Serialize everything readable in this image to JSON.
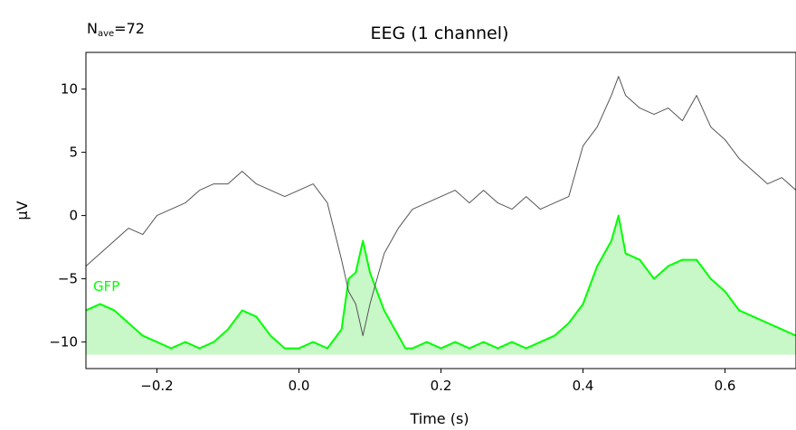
{
  "chart_data": {
    "type": "line",
    "title": "EEG (1 channel)",
    "annotation": {
      "main": "N",
      "sub": "ave",
      "suffix": "=72"
    },
    "xlabel": "Time (s)",
    "ylabel": "µV",
    "xlim": [
      -0.3,
      0.7
    ],
    "ylim": [
      -12.1,
      12.9
    ],
    "xticks": [
      {
        "value": -0.2,
        "label": "−0.2"
      },
      {
        "value": 0.0,
        "label": "0.0"
      },
      {
        "value": 0.2,
        "label": "0.2"
      },
      {
        "value": 0.4,
        "label": "0.4"
      },
      {
        "value": 0.6,
        "label": "0.6"
      }
    ],
    "yticks": [
      {
        "value": 10,
        "label": "10"
      },
      {
        "value": 5,
        "label": "5"
      },
      {
        "value": 0,
        "label": "0"
      },
      {
        "value": -5,
        "label": "−5"
      },
      {
        "value": -10,
        "label": "−10"
      }
    ],
    "grid": false,
    "series": [
      {
        "name": "",
        "color": "#555555",
        "x": [
          -0.3,
          -0.28,
          -0.26,
          -0.24,
          -0.22,
          -0.2,
          -0.18,
          -0.16,
          -0.14,
          -0.12,
          -0.1,
          -0.08,
          -0.06,
          -0.04,
          -0.02,
          0.0,
          0.02,
          0.04,
          0.06,
          0.07,
          0.08,
          0.09,
          0.1,
          0.11,
          0.12,
          0.14,
          0.16,
          0.18,
          0.2,
          0.22,
          0.24,
          0.26,
          0.28,
          0.3,
          0.32,
          0.34,
          0.36,
          0.38,
          0.4,
          0.42,
          0.44,
          0.45,
          0.46,
          0.48,
          0.5,
          0.52,
          0.54,
          0.56,
          0.58,
          0.6,
          0.62,
          0.64,
          0.66,
          0.68,
          0.7
        ],
        "y": [
          -4.0,
          -3.0,
          -2.0,
          -1.0,
          -1.5,
          0.0,
          0.5,
          1.0,
          2.0,
          2.5,
          2.5,
          3.5,
          2.5,
          2.0,
          1.5,
          2.0,
          2.5,
          1.0,
          -3.5,
          -6.0,
          -7.0,
          -9.5,
          -7.0,
          -5.0,
          -3.0,
          -1.0,
          0.5,
          1.0,
          1.5,
          2.0,
          1.0,
          2.0,
          1.0,
          0.5,
          1.5,
          0.5,
          1.0,
          1.5,
          5.5,
          7.0,
          9.5,
          11.0,
          9.5,
          8.5,
          8.0,
          8.5,
          7.5,
          9.5,
          7.0,
          6.0,
          4.5,
          3.5,
          2.5,
          3.0,
          2.0
        ]
      },
      {
        "name": "GFP",
        "color": "#00ff00",
        "fill": "#c8f7c8",
        "baseline": -11.0,
        "x": [
          -0.3,
          -0.28,
          -0.26,
          -0.24,
          -0.22,
          -0.2,
          -0.18,
          -0.16,
          -0.14,
          -0.12,
          -0.1,
          -0.08,
          -0.06,
          -0.04,
          -0.02,
          0.0,
          0.02,
          0.04,
          0.06,
          0.07,
          0.08,
          0.09,
          0.1,
          0.11,
          0.12,
          0.14,
          0.15,
          0.16,
          0.18,
          0.2,
          0.22,
          0.24,
          0.26,
          0.28,
          0.3,
          0.32,
          0.34,
          0.36,
          0.38,
          0.4,
          0.42,
          0.44,
          0.45,
          0.46,
          0.48,
          0.5,
          0.52,
          0.54,
          0.56,
          0.58,
          0.6,
          0.62,
          0.64,
          0.66,
          0.68,
          0.7
        ],
        "y": [
          -7.5,
          -7.0,
          -7.5,
          -8.5,
          -9.5,
          -10.0,
          -10.5,
          -10.0,
          -10.5,
          -10.0,
          -9.0,
          -7.5,
          -8.0,
          -9.5,
          -10.5,
          -10.5,
          -10.0,
          -10.5,
          -9.0,
          -5.0,
          -4.5,
          -2.0,
          -4.5,
          -6.0,
          -7.5,
          -9.5,
          -10.5,
          -10.5,
          -10.0,
          -10.5,
          -10.0,
          -10.5,
          -10.0,
          -10.5,
          -10.0,
          -10.5,
          -10.0,
          -9.5,
          -8.5,
          -7.0,
          -4.0,
          -2.0,
          0.0,
          -3.0,
          -3.5,
          -5.0,
          -4.0,
          -3.5,
          -3.5,
          -5.0,
          -6.0,
          -7.5,
          -8.0,
          -8.5,
          -9.0,
          -9.5
        ]
      }
    ]
  }
}
